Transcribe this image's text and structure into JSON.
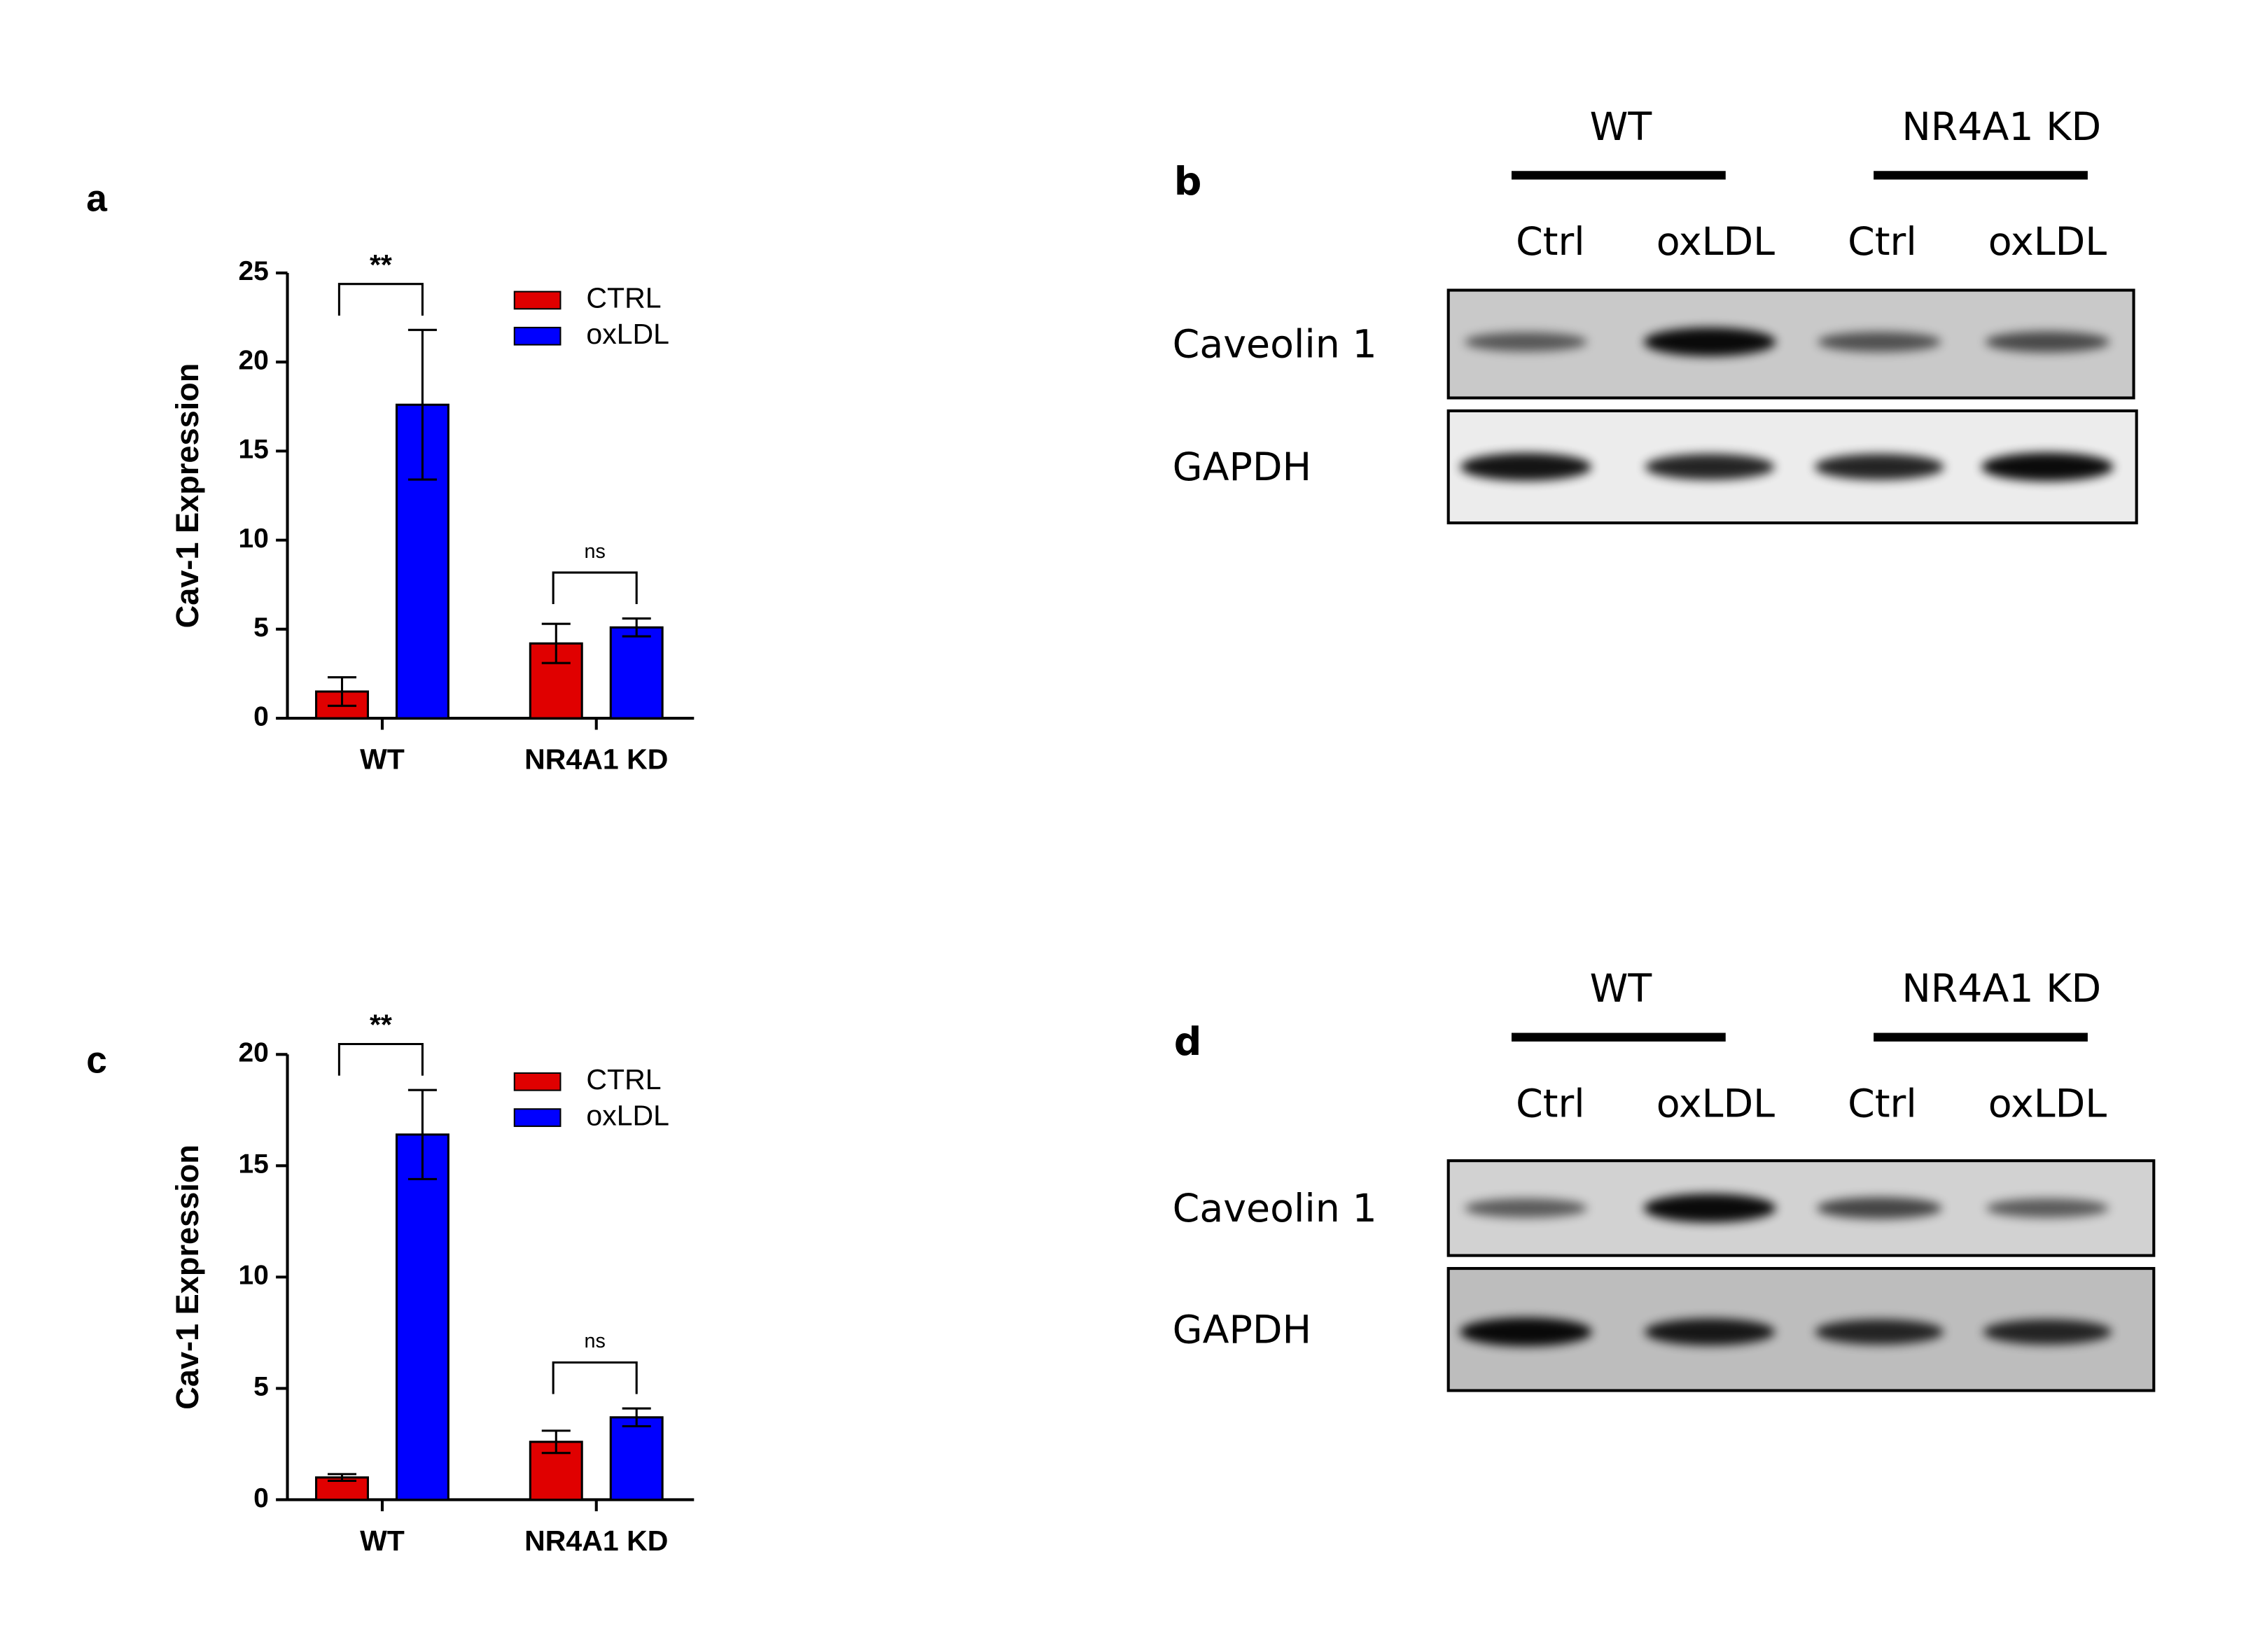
{
  "chart_data": [
    {
      "type": "bar",
      "panel": "a",
      "ylabel": "Cav-1 Expression",
      "categories": [
        "WT",
        "NR4A1 KD"
      ],
      "series": [
        {
          "name": "CTRL",
          "color": "#e00000",
          "values": [
            1.5,
            4.2
          ],
          "errors": [
            0.8,
            1.1
          ]
        },
        {
          "name": "oxLDL",
          "color": "#0000ff",
          "values": [
            17.6,
            5.1
          ],
          "errors": [
            4.2,
            0.5
          ]
        }
      ],
      "ylim": [
        0,
        25
      ],
      "yticks": [
        0,
        5,
        10,
        15,
        20,
        25
      ],
      "annotations": [
        "**",
        "ns"
      ]
    },
    {
      "type": "bar",
      "panel": "c",
      "ylabel": "Cav-1 Expression",
      "categories": [
        "WT",
        "NR4A1 KD"
      ],
      "series": [
        {
          "name": "CTRL",
          "color": "#e00000",
          "values": [
            1.0,
            2.6
          ],
          "errors": [
            0.15,
            0.5
          ]
        },
        {
          "name": "oxLDL",
          "color": "#0000ff",
          "values": [
            16.4,
            3.7
          ],
          "errors": [
            2.0,
            0.4
          ]
        }
      ],
      "ylim": [
        0,
        20
      ],
      "yticks": [
        0,
        5,
        10,
        15,
        20
      ],
      "annotations": [
        "**",
        "ns"
      ]
    }
  ],
  "blots": [
    {
      "panel": "b",
      "groups": [
        "WT",
        "NR4A1 KD"
      ],
      "lanes": [
        "Ctrl",
        "oxLDL",
        "Ctrl",
        "oxLDL"
      ],
      "rows": [
        "Caveolin 1",
        "GAPDH"
      ]
    },
    {
      "panel": "d",
      "groups": [
        "WT",
        "NR4A1 KD"
      ],
      "lanes": [
        "Ctrl",
        "oxLDL",
        "Ctrl",
        "oxLDL"
      ],
      "rows": [
        "Caveolin 1",
        "GAPDH"
      ]
    }
  ]
}
